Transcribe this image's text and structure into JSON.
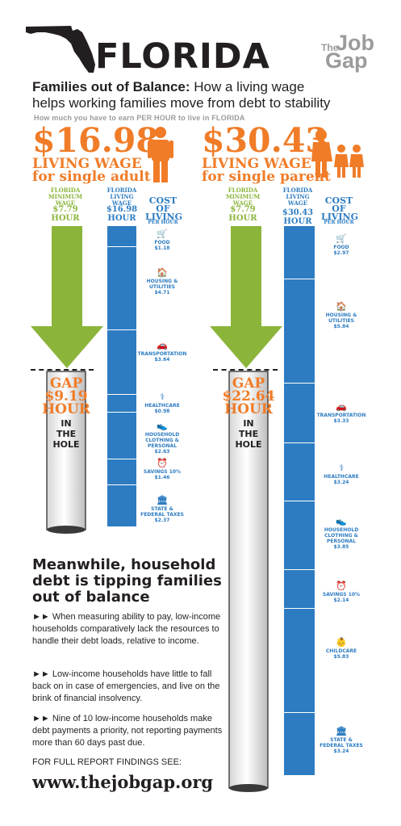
{
  "header": {
    "title": "FLORIDA",
    "brand_the": "The",
    "brand_job": "Job",
    "brand_gap": "Gap",
    "subtitle_bold": "Families out of Balance:",
    "subtitle_rest": " How a living wage",
    "subtitle_line2": "helps working families move from debt to stability",
    "note": "How much you have to earn PER HOUR to live in FLORIDA"
  },
  "colors": {
    "orange": "#f07c28",
    "green": "#8bb53a",
    "blue": "#2d7cc2",
    "dark": "#231f20",
    "gray": "#9b9b9b"
  },
  "single_adult": {
    "wage": "$16.98",
    "line1": "LIVING WAGE",
    "line2": "for single adult",
    "min_head": "FLORIDA MINIMUM WAGE",
    "min_val": "$7.79",
    "min_unit": "HOUR",
    "lw_head": "FLORIDA LIVING WAGE",
    "lw_val": "$16.98",
    "lw_unit": "HOUR",
    "cost_head": "COST OF LIVING",
    "cost_sub": "PER HOUR",
    "costs": [
      {
        "icon": "cart-icon",
        "label": "FOOD",
        "value": "$1.18"
      },
      {
        "icon": "house-icon",
        "label": "HOUSING & UTILITIES",
        "value": "$4.71"
      },
      {
        "icon": "car-icon",
        "label": "TRANSPORTATION",
        "value": "$3.64"
      },
      {
        "icon": "healthcare-icon",
        "label": "HEALTHCARE",
        "value": "$0.98"
      },
      {
        "icon": "shoe-icon",
        "label": "HOUSEHOLD CLOTHING & PERSONAL",
        "value": "$2.63"
      },
      {
        "icon": "piggy-icon",
        "label": "SAVINGS 10%",
        "value": "$1.46"
      },
      {
        "icon": "capitol-icon",
        "label": "STATE & FEDERAL TAXES",
        "value": "$2.37"
      }
    ],
    "gap_word": "GAP",
    "gap_val": "$9.19",
    "gap_unit": "HOUR",
    "hole_1": "IN",
    "hole_2": "THE",
    "hole_3": "HOLE"
  },
  "single_parent": {
    "wage": "$30.43",
    "line1": "LIVING WAGE",
    "line2": "for single parent",
    "min_head": "FLORIDA MINIMUM WAGE",
    "min_val": "$7.79",
    "min_unit": "HOUR",
    "lw_head": "FLORIDA LIVING WAGE",
    "lw_val": "$30.43",
    "lw_unit": "HOUR",
    "cost_head": "COST OF LIVING",
    "cost_sub": "PER HOUR",
    "costs": [
      {
        "icon": "cart-icon",
        "label": "FOOD",
        "value": "$2.97"
      },
      {
        "icon": "house-icon",
        "label": "HOUSING & UTILITIES",
        "value": "$5.84"
      },
      {
        "icon": "car-icon",
        "label": "TRANSPORTATION",
        "value": "$3.33"
      },
      {
        "icon": "healthcare-icon",
        "label": "HEALTHCARE",
        "value": "$3.24"
      },
      {
        "icon": "shoe-icon",
        "label": "HOUSEHOLD CLOTHING & PERSONAL",
        "value": "$3.85"
      },
      {
        "icon": "piggy-icon",
        "label": "SAVINGS 10%",
        "value": "$2.14"
      },
      {
        "icon": "baby-icon",
        "label": "CHILDCARE",
        "value": "$5.83"
      },
      {
        "icon": "capitol-icon",
        "label": "STATE & FEDERAL TAXES",
        "value": "$3.24"
      }
    ],
    "gap_word": "GAP",
    "gap_val": "$22.64",
    "gap_unit": "HOUR",
    "hole_1": "IN",
    "hole_2": "THE",
    "hole_3": "HOLE"
  },
  "debt": {
    "heading": "Meanwhile, household debt is tipping families out of balance",
    "p1": "►► When measuring ability to pay, low-income households comparatively lack the resources to handle their debt loads, relative to income.",
    "p2": "►► Low-income households have little to fall back on in case of emergencies, and live on the brink of financial insolvency.",
    "p3": "►► Nine of 10 low-income households make debt payments a priority, not reporting payments more than 60 days past due.",
    "full_report": "FOR FULL REPORT FINDINGS SEE:",
    "url": "www.thejobgap.org"
  }
}
